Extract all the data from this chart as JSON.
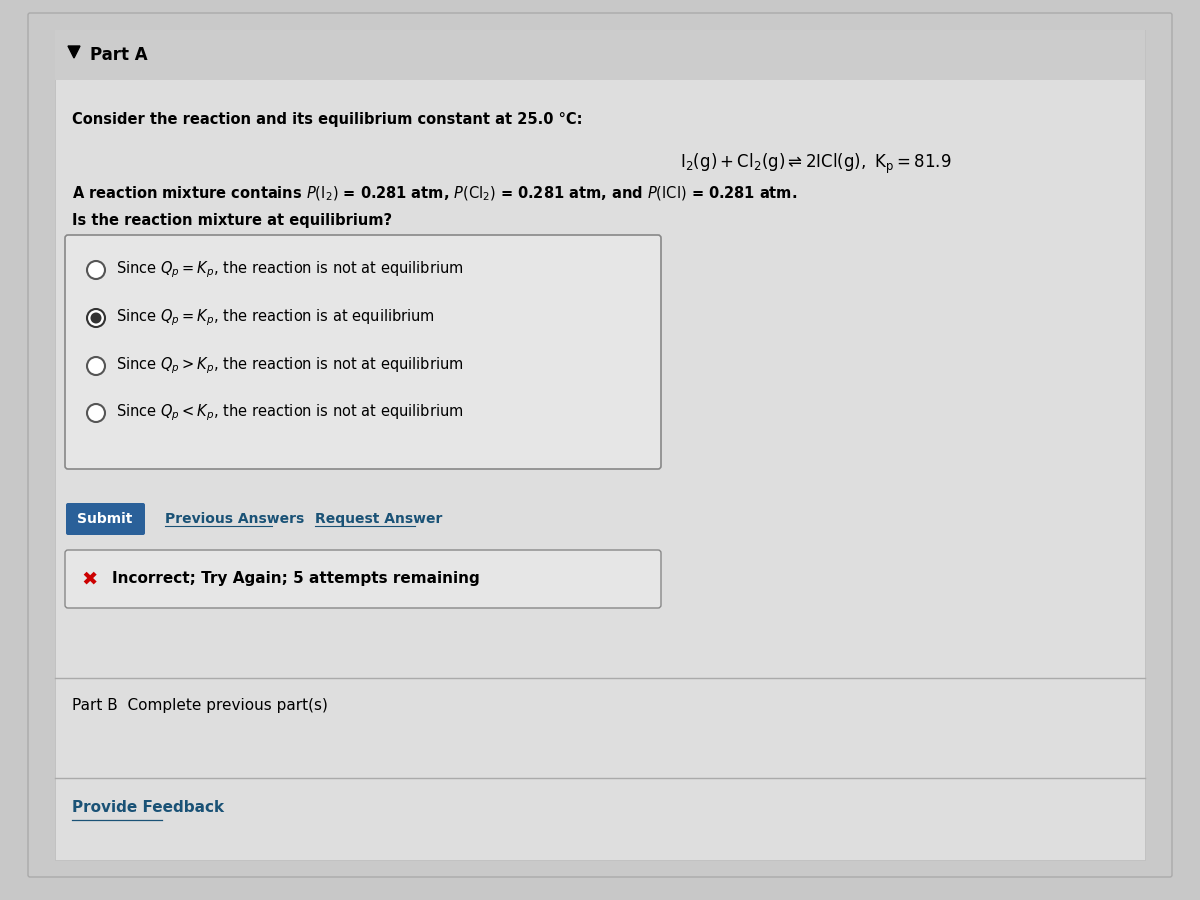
{
  "bg_color": "#c8c8c8",
  "part_a_label": "Part A",
  "consider_text": "Consider the reaction and its equilibrium constant at 25.0 °C:",
  "question": "Is the reaction mixture at equilibrium?",
  "selected_option": 1,
  "submit_text": "Submit",
  "submit_bg": "#2a6099",
  "submit_color": "#ffffff",
  "prev_answers": "Previous Answers",
  "request_answer": "Request Answer",
  "link_color": "#1a5276",
  "incorrect_text": "Incorrect; Try Again; 5 attempts remaining",
  "incorrect_x_color": "#cc0000",
  "part_b_text": "Part B  Complete previous part(s)",
  "provide_feedback": "Provide Feedback",
  "body_fontsize": 10.5,
  "option_fontsize": 10.5
}
